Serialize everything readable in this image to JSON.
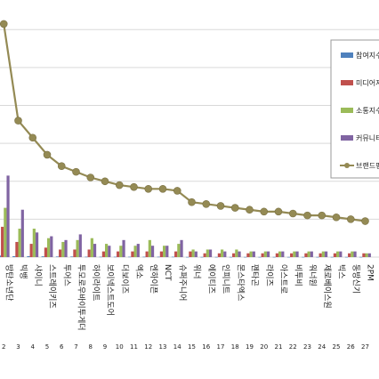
{
  "chart_data": {
    "type": "bar",
    "categories": [
      "방탄소년단",
      "빅뱅",
      "샤이니",
      "스트레이키즈",
      "투어스",
      "투모로우바이투게더",
      "하이라이트",
      "보이넥스트도어",
      "더보이즈",
      "엑소",
      "엔하이픈",
      "NCT",
      "슈퍼주니어",
      "위너",
      "에이티즈",
      "인피니트",
      "몬스타엑스",
      "펜타곤",
      "라이즈",
      "아스트로",
      "비투비",
      "워너원",
      "제로베이스원",
      "빅스",
      "동방신기",
      "2PM"
    ],
    "ranks": [
      "2",
      "3",
      "4",
      "5",
      "6",
      "7",
      "8",
      "9",
      "10",
      "11",
      "12",
      "13",
      "14",
      "15",
      "16",
      "17",
      "18",
      "19",
      "20",
      "21",
      "22",
      "23",
      "24",
      "25",
      "26",
      "27"
    ],
    "series": [
      {
        "name": "참여지수",
        "color": "#4f81bd",
        "values": [
          0.8,
          0.5,
          0.5,
          0.4,
          0.3,
          0.3,
          0.2,
          0.2,
          0.2,
          0.2,
          0.2,
          0.2,
          0.2,
          0.1,
          0.1,
          0.1,
          0.1,
          0.1,
          0.1,
          0.1,
          0.1,
          0.1,
          0.1,
          0.1,
          0.1,
          0.1
        ]
      },
      {
        "name": "미디어지수",
        "color": "#c0504d",
        "values": [
          16,
          8,
          7,
          5,
          4,
          4,
          4,
          3,
          3,
          3,
          3,
          3,
          3,
          3,
          2,
          2,
          2,
          2,
          2,
          2,
          2,
          2,
          2,
          2,
          2,
          2
        ]
      },
      {
        "name": "소통지수",
        "color": "#9bbb59",
        "values": [
          26,
          15,
          15,
          10,
          8,
          9,
          10,
          7,
          6,
          6,
          9,
          6,
          7,
          4,
          4,
          4,
          4,
          3,
          3,
          3,
          3,
          3,
          3,
          3,
          3,
          2
        ]
      },
      {
        "name": "커뮤니티지수",
        "color": "#8064a2",
        "values": [
          43,
          25,
          13,
          11,
          9,
          12,
          7,
          6,
          9,
          7,
          6,
          6,
          9,
          3,
          4,
          3,
          3,
          3,
          3,
          3,
          3,
          3,
          3,
          3,
          3,
          2
        ]
      },
      {
        "name": "브랜드평판지수",
        "color": "#948a54",
        "type": "line",
        "values": [
          123,
          72,
          63,
          54,
          48,
          45,
          42,
          40,
          38,
          37,
          36,
          36,
          35,
          29,
          28,
          27,
          26,
          25,
          24,
          24,
          23,
          22,
          22,
          21,
          20,
          19
        ]
      }
    ],
    "ylim": [
      0,
      130
    ],
    "grid": true,
    "legend_position": "top-right",
    "xlabel": "",
    "ylabel": ""
  }
}
